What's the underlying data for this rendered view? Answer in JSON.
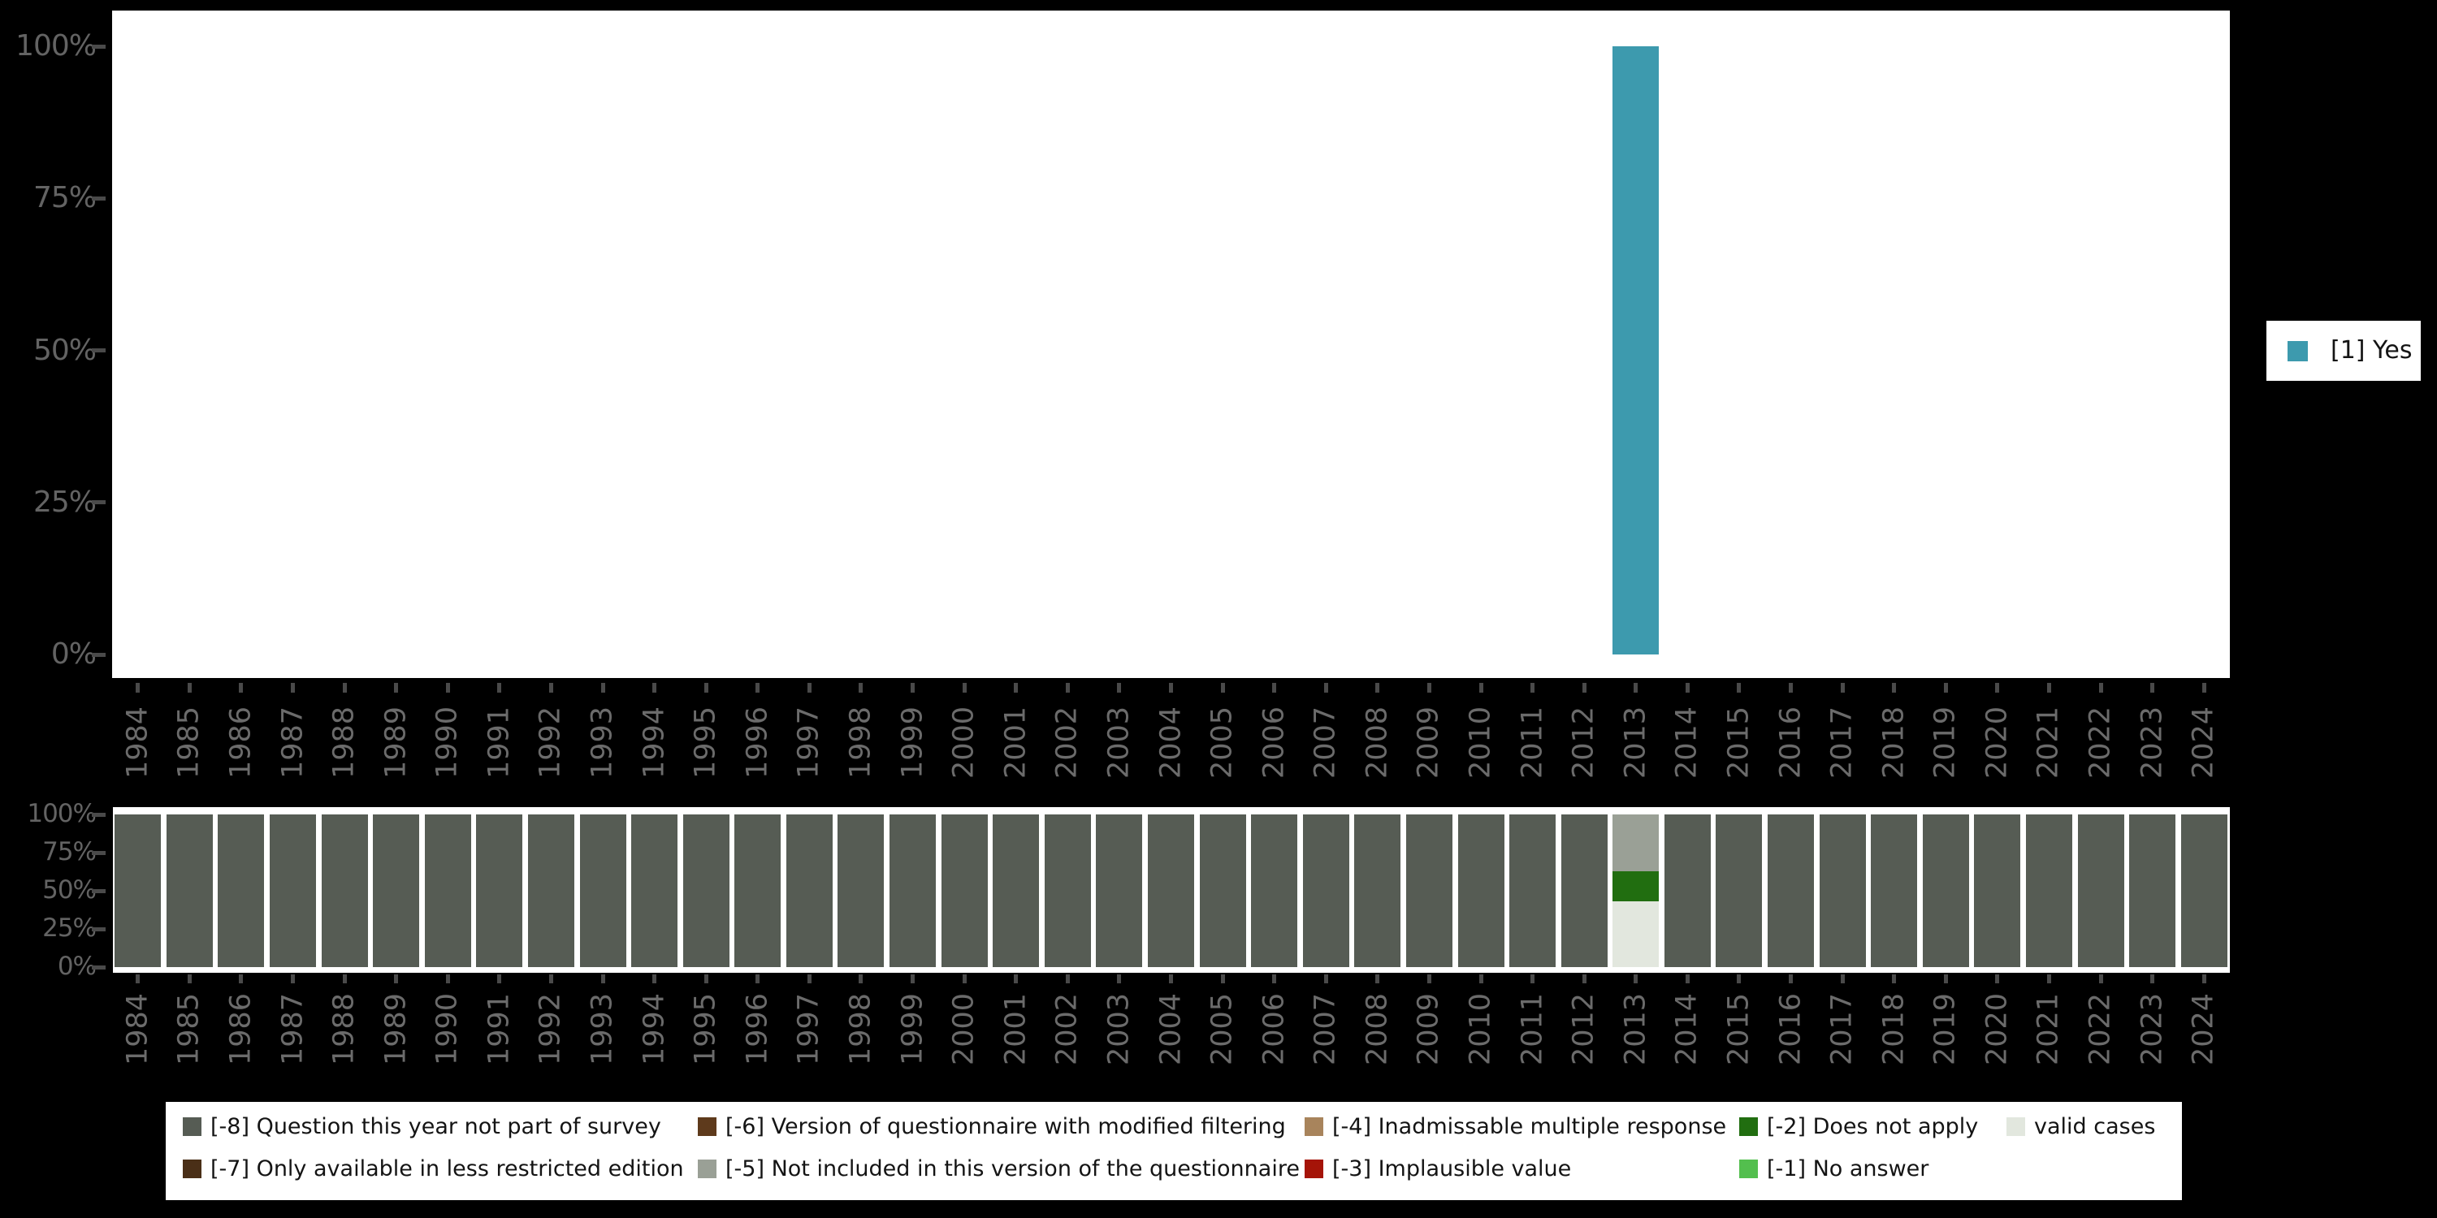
{
  "colors": {
    "background": "#000000",
    "plot_background": "#ffffff",
    "axis_tick": "#4a4a4a",
    "axis_label": "#6b6b6b",
    "legend_text": "#141414",
    "yes_teal": "#3d9aae",
    "m8_gray_green": "#565c54",
    "m7_dark_brown": "#4a2f17",
    "m6_brown": "#5e3a1c",
    "m5_gray": "#9aa096",
    "m4_tan": "#a8845c",
    "m3_dark_red": "#a51408",
    "m2_dark_green": "#216e10",
    "m1_light_green": "#53bf4e",
    "valid_light": "#e2e7de"
  },
  "years": [
    "1984",
    "1985",
    "1986",
    "1987",
    "1988",
    "1989",
    "1990",
    "1991",
    "1992",
    "1993",
    "1994",
    "1995",
    "1996",
    "1997",
    "1998",
    "1999",
    "2000",
    "2001",
    "2002",
    "2003",
    "2004",
    "2005",
    "2006",
    "2007",
    "2008",
    "2009",
    "2010",
    "2011",
    "2012",
    "2013",
    "2014",
    "2015",
    "2016",
    "2017",
    "2018",
    "2019",
    "2020",
    "2021",
    "2022",
    "2023",
    "2024"
  ],
  "y_axis_ticks_top": [
    "100%",
    "75%",
    "50%",
    "25%",
    "0%"
  ],
  "y_axis_ticks_bottom": [
    "100%",
    "75%",
    "50%",
    "25%",
    "0%"
  ],
  "legend_right": {
    "label": "[1] Yes",
    "color": "#3d9aae"
  },
  "legend_bottom": {
    "columns": [
      {
        "x": 21,
        "items": [
          {
            "label": "[-8] Question this year not part of survey",
            "color": "#565c54"
          },
          {
            "label": "[-7] Only available in less restricted edition",
            "color": "#4a2f17"
          }
        ]
      },
      {
        "x": 655,
        "items": [
          {
            "label": "[-6] Version of questionnaire with modified filtering",
            "color": "#5e3a1c"
          },
          {
            "label": "[-5] Not included in this version of the questionnaire",
            "color": "#9aa096"
          }
        ]
      },
      {
        "x": 1402,
        "items": [
          {
            "label": "[-4] Inadmissable multiple response",
            "color": "#a8845c"
          },
          {
            "label": "[-3] Implausible value",
            "color": "#a51408"
          }
        ]
      },
      {
        "x": 1937,
        "items": [
          {
            "label": "[-2] Does not apply",
            "color": "#216e10"
          },
          {
            "label": "[-1] No answer",
            "color": "#53bf4e"
          }
        ]
      },
      {
        "x": 2266,
        "items": [
          {
            "label": "valid cases",
            "color": "#e2e7de"
          }
        ]
      }
    ]
  },
  "chart_data": [
    {
      "type": "bar",
      "title": "",
      "xlabel": "",
      "ylabel": "",
      "ylim": [
        0,
        100
      ],
      "yticks_percent": [
        0,
        25,
        50,
        75,
        100
      ],
      "grid": false,
      "legend_position": "right",
      "categories": [
        "1984",
        "1985",
        "1986",
        "1987",
        "1988",
        "1989",
        "1990",
        "1991",
        "1992",
        "1993",
        "1994",
        "1995",
        "1996",
        "1997",
        "1998",
        "1999",
        "2000",
        "2001",
        "2002",
        "2003",
        "2004",
        "2005",
        "2006",
        "2007",
        "2008",
        "2009",
        "2010",
        "2011",
        "2012",
        "2013",
        "2014",
        "2015",
        "2016",
        "2017",
        "2018",
        "2019",
        "2020",
        "2021",
        "2022",
        "2023",
        "2024"
      ],
      "series": [
        {
          "name": "[1] Yes",
          "color": "#3d9aae",
          "values": [
            null,
            null,
            null,
            null,
            null,
            null,
            null,
            null,
            null,
            null,
            null,
            null,
            null,
            null,
            null,
            null,
            null,
            null,
            null,
            null,
            null,
            null,
            null,
            null,
            null,
            null,
            null,
            null,
            null,
            100,
            null,
            null,
            null,
            null,
            null,
            null,
            null,
            null,
            null,
            null,
            null
          ]
        }
      ]
    },
    {
      "type": "bar",
      "subtype": "stacked-percent-missing-values",
      "title": "",
      "xlabel": "",
      "ylabel": "",
      "ylim": [
        0,
        100
      ],
      "yticks_percent": [
        0,
        25,
        50,
        75,
        100
      ],
      "grid": false,
      "legend_position": "bottom",
      "stack_order_bottom_to_top": [
        "valid cases",
        "[-2] Does not apply",
        "[-5] Not included in this version of the questionnaire",
        "[-8] Question this year not part of survey"
      ],
      "categories": [
        "1984",
        "1985",
        "1986",
        "1987",
        "1988",
        "1989",
        "1990",
        "1991",
        "1992",
        "1993",
        "1994",
        "1995",
        "1996",
        "1997",
        "1998",
        "1999",
        "2000",
        "2001",
        "2002",
        "2003",
        "2004",
        "2005",
        "2006",
        "2007",
        "2008",
        "2009",
        "2010",
        "2011",
        "2012",
        "2013",
        "2014",
        "2015",
        "2016",
        "2017",
        "2018",
        "2019",
        "2020",
        "2021",
        "2022",
        "2023",
        "2024"
      ],
      "series": [
        {
          "name": "[-8] Question this year not part of survey",
          "color": "#565c54",
          "values": [
            100,
            100,
            100,
            100,
            100,
            100,
            100,
            100,
            100,
            100,
            100,
            100,
            100,
            100,
            100,
            100,
            100,
            100,
            100,
            100,
            100,
            100,
            100,
            100,
            100,
            100,
            100,
            100,
            100,
            0,
            100,
            100,
            100,
            100,
            100,
            100,
            100,
            100,
            100,
            100,
            100
          ]
        },
        {
          "name": "[-5] Not included in this version of the questionnaire",
          "color": "#9aa096",
          "values": [
            0,
            0,
            0,
            0,
            0,
            0,
            0,
            0,
            0,
            0,
            0,
            0,
            0,
            0,
            0,
            0,
            0,
            0,
            0,
            0,
            0,
            0,
            0,
            0,
            0,
            0,
            0,
            0,
            0,
            37,
            0,
            0,
            0,
            0,
            0,
            0,
            0,
            0,
            0,
            0,
            0
          ]
        },
        {
          "name": "[-2] Does not apply",
          "color": "#216e10",
          "values": [
            0,
            0,
            0,
            0,
            0,
            0,
            0,
            0,
            0,
            0,
            0,
            0,
            0,
            0,
            0,
            0,
            0,
            0,
            0,
            0,
            0,
            0,
            0,
            0,
            0,
            0,
            0,
            0,
            0,
            20,
            0,
            0,
            0,
            0,
            0,
            0,
            0,
            0,
            0,
            0,
            0
          ]
        },
        {
          "name": "valid cases",
          "color": "#e2e7de",
          "values": [
            0,
            0,
            0,
            0,
            0,
            0,
            0,
            0,
            0,
            0,
            0,
            0,
            0,
            0,
            0,
            0,
            0,
            0,
            0,
            0,
            0,
            0,
            0,
            0,
            0,
            0,
            0,
            0,
            0,
            43,
            0,
            0,
            0,
            0,
            0,
            0,
            0,
            0,
            0,
            0,
            0
          ]
        }
      ]
    }
  ]
}
